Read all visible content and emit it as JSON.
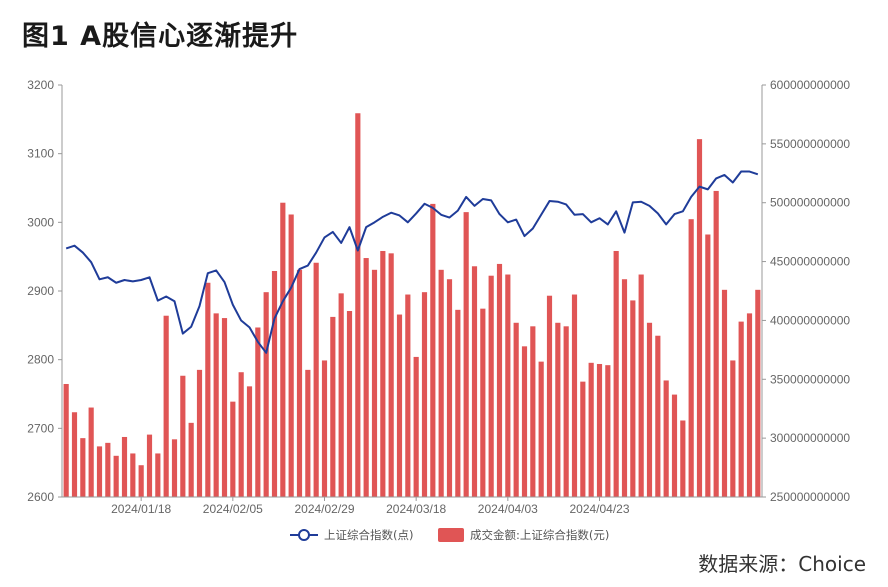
{
  "title": "图1  A股信心逐渐提升",
  "source": "数据来源：Choice",
  "chart_data": {
    "type": "bar+line",
    "x_tick_labels": [
      "2024/01/18",
      "2024/02/05",
      "2024/02/29",
      "2024/03/18",
      "2024/04/03",
      "2024/04/23"
    ],
    "x_tick_indices": [
      9,
      20,
      31,
      42,
      53,
      64
    ],
    "y_left": {
      "min": 2600,
      "max": 3200,
      "ticks": [
        2600,
        2700,
        2800,
        2900,
        3000,
        3100,
        3200
      ]
    },
    "y_right": {
      "min": 250000000000,
      "max": 600000000000,
      "ticks": [
        "250000000000",
        "300000000000",
        "350000000000",
        "400000000000",
        "450000000000",
        "500000000000",
        "550000000000",
        "600000000000"
      ]
    },
    "series": [
      {
        "name": "上证综合指数(点)",
        "kind": "line",
        "axis": "left",
        "color": "#1f3c99",
        "values": [
          2962,
          2966,
          2956,
          2942,
          2917,
          2920,
          2912,
          2916,
          2914,
          2916,
          2920,
          2886,
          2892,
          2885,
          2838,
          2848,
          2878,
          2926,
          2930,
          2913,
          2880,
          2857,
          2847,
          2826,
          2810,
          2860,
          2885,
          2905,
          2932,
          2937,
          2956,
          2978,
          2986,
          2970,
          2993,
          2959,
          2993,
          3000,
          3008,
          3014,
          3010,
          3000,
          3013,
          3027,
          3021,
          3011,
          3007,
          3017,
          3037,
          3024,
          3034,
          3032,
          3012,
          3000,
          3004,
          2980,
          2991,
          3011,
          3031,
          3030,
          3026,
          3011,
          3012,
          3000,
          3006,
          2997,
          3016,
          2985,
          3029,
          3030,
          3024,
          3013,
          2997,
          3012,
          3016,
          3037,
          3052,
          3048,
          3064,
          3069,
          3058,
          3074,
          3074,
          3070
        ]
      },
      {
        "name": "成交金额:上证综合指数(元)",
        "kind": "bar",
        "axis": "right",
        "color": "#e05555",
        "values": [
          346000000000,
          322000000000,
          300000000000,
          326000000000,
          293000000000,
          296000000000,
          285000000000,
          301000000000,
          287000000000,
          277000000000,
          303000000000,
          287000000000,
          404000000000,
          299000000000,
          353000000000,
          313000000000,
          358000000000,
          432000000000,
          406000000000,
          402000000000,
          331000000000,
          356000000000,
          344000000000,
          394000000000,
          424000000000,
          442000000000,
          500000000000,
          490000000000,
          443000000000,
          358000000000,
          449000000000,
          366000000000,
          403000000000,
          423000000000,
          408000000000,
          576000000000,
          453000000000,
          443000000000,
          459000000000,
          457000000000,
          405000000000,
          422000000000,
          369000000000,
          424000000000,
          499000000000,
          443000000000,
          435000000000,
          409000000000,
          492000000000,
          446000000000,
          410000000000,
          438000000000,
          448000000000,
          439000000000,
          398000000000,
          378000000000,
          395000000000,
          365000000000,
          421000000000,
          398000000000,
          395000000000,
          422000000000,
          348000000000,
          364000000000,
          363000000000,
          362000000000,
          459000000000,
          435000000000,
          417000000000,
          439000000000,
          398000000000,
          387000000000,
          349000000000,
          337000000000,
          315000000000,
          486000000000,
          554000000000,
          473000000000,
          510000000000,
          426000000000,
          366000000000,
          399000000000,
          406000000000,
          426000000000
        ]
      }
    ],
    "legend_position": "bottom-center",
    "grid": false
  }
}
